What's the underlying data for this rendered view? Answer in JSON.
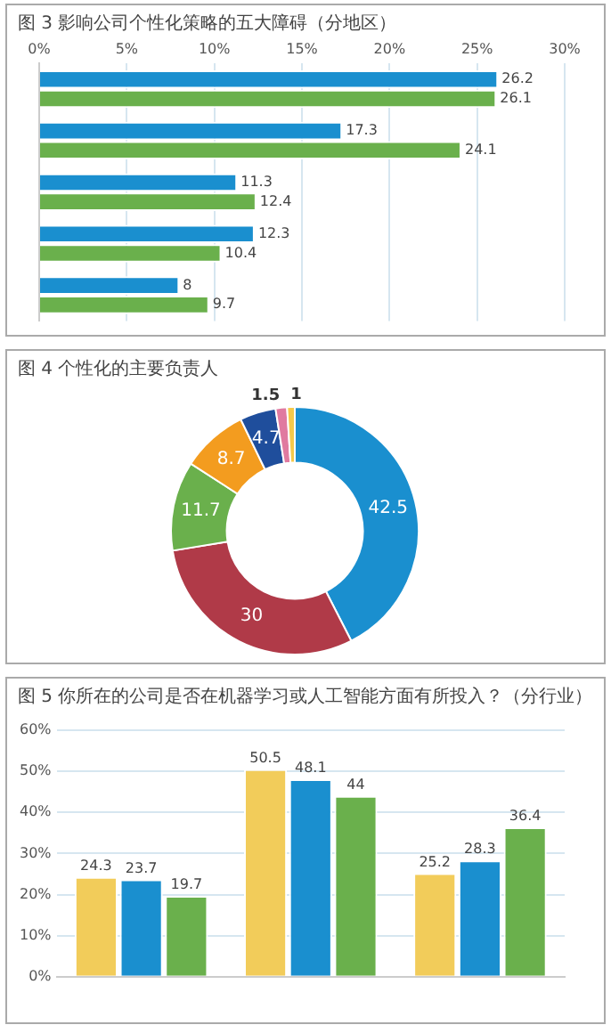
{
  "chart_data": [
    {
      "type": "bar",
      "title": "图 3 影响公司个性化策略的五大障碍（分地区）",
      "orientation": "horizontal",
      "categories": [
        null,
        null,
        null,
        null,
        null
      ],
      "series": [
        {
          "color": "#1a8fcf",
          "values": [
            26.2,
            17.3,
            11.3,
            12.3,
            8
          ]
        },
        {
          "color": "#6ab04c",
          "values": [
            26.1,
            24.1,
            12.4,
            10.4,
            9.7
          ]
        }
      ],
      "xlim": [
        0,
        30
      ],
      "xticks": [
        {
          "value": 0,
          "label": "0%"
        },
        {
          "value": 5,
          "label": "5%"
        },
        {
          "value": 10,
          "label": "10%"
        },
        {
          "value": 15,
          "label": "15%"
        },
        {
          "value": 20,
          "label": "20%"
        },
        {
          "value": 25,
          "label": "25%"
        },
        {
          "value": 30,
          "label": "30%"
        }
      ],
      "grid": "x",
      "data_labels": true
    },
    {
      "type": "donut",
      "title": "图 4 个性化的主要负责人",
      "categories": [
        null,
        null,
        null,
        null,
        null,
        null,
        null
      ],
      "values": [
        42.5,
        30,
        11.7,
        8.7,
        4.7,
        1.5,
        1
      ],
      "colors": [
        "#1a8fcf",
        "#b03a48",
        "#6ab04c",
        "#f39c1f",
        "#1f4e9c",
        "#e07aa0",
        "#f5c94a"
      ],
      "data_labels": true
    },
    {
      "type": "bar",
      "title": "图 5 你所在的公司是否在机器学习或人工智能方面有所投入？（分行业）",
      "categories": [
        null,
        null,
        null
      ],
      "series": [
        {
          "color": "#f2cc5a",
          "values": [
            24.3,
            50.5,
            25.2
          ]
        },
        {
          "color": "#1a8fcf",
          "values": [
            23.7,
            48.1,
            28.3
          ]
        },
        {
          "color": "#6ab04c",
          "values": [
            19.7,
            44,
            36.4
          ]
        }
      ],
      "ylim": [
        0,
        60
      ],
      "yticks": [
        {
          "value": 0,
          "label": "0%"
        },
        {
          "value": 10,
          "label": "10%"
        },
        {
          "value": 20,
          "label": "20%"
        },
        {
          "value": 30,
          "label": "30%"
        },
        {
          "value": 40,
          "label": "40%"
        },
        {
          "value": 50,
          "label": "50%"
        },
        {
          "value": 60,
          "label": "60%"
        }
      ],
      "grid": "y",
      "data_labels": true
    }
  ]
}
